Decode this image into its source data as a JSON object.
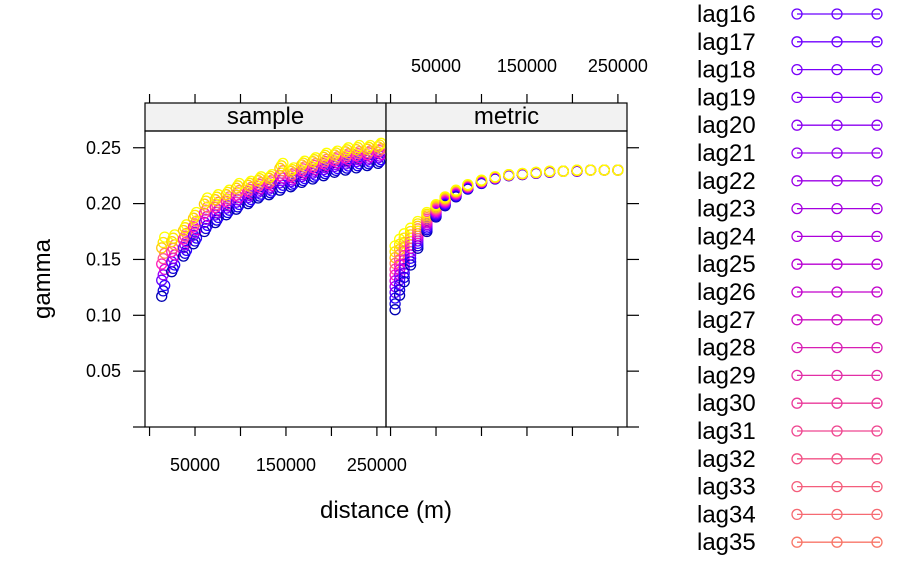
{
  "chart_data": {
    "type": "scatter",
    "xlabel": "distance (m)",
    "ylabel": "gamma",
    "x_ticks": [
      50000,
      150000,
      250000
    ],
    "x_tick_labels": [
      "50000",
      "150000",
      "250000"
    ],
    "y_ticks": [
      0.05,
      0.1,
      0.15,
      0.2,
      0.25
    ],
    "y_tick_labels": [
      "0.05",
      "0.10",
      "0.15",
      "0.20",
      "0.25"
    ],
    "xlim": [
      -5000,
      260000
    ],
    "ylim": [
      0.0,
      0.265
    ],
    "grid": false,
    "legend_placement": "right",
    "panels": [
      {
        "name": "sample",
        "x": [
          15000,
          26000,
          39000,
          50000,
          62000,
          74000,
          86000,
          97000,
          110000,
          121000,
          133000,
          145000,
          157000,
          169000,
          181000,
          193000,
          205000,
          217000,
          229000,
          241000,
          253000
        ],
        "y_min": [
          0.117,
          0.139,
          0.153,
          0.164,
          0.175,
          0.183,
          0.19,
          0.195,
          0.2,
          0.205,
          0.208,
          0.212,
          0.215,
          0.219,
          0.222,
          0.225,
          0.228,
          0.23,
          0.232,
          0.234,
          0.236
        ],
        "y_max": [
          0.17,
          0.172,
          0.181,
          0.192,
          0.205,
          0.208,
          0.212,
          0.218,
          0.22,
          0.224,
          0.226,
          0.236,
          0.232,
          0.238,
          0.241,
          0.245,
          0.247,
          0.25,
          0.252,
          0.252,
          0.254
        ]
      },
      {
        "name": "metric",
        "x": [
          5000,
          10000,
          15000,
          22000,
          30000,
          40000,
          50000,
          60000,
          72000,
          85000,
          100000,
          115000,
          130000,
          145000,
          160000,
          175000,
          190000,
          205000,
          220000,
          235000,
          250000
        ],
        "y_min": [
          0.105,
          0.118,
          0.13,
          0.145,
          0.16,
          0.175,
          0.188,
          0.198,
          0.206,
          0.213,
          0.218,
          0.222,
          0.225,
          0.226,
          0.227,
          0.228,
          0.229,
          0.229,
          0.23,
          0.23,
          0.23
        ],
        "y_max": [
          0.162,
          0.168,
          0.173,
          0.178,
          0.184,
          0.192,
          0.199,
          0.206,
          0.212,
          0.217,
          0.221,
          0.224,
          0.226,
          0.227,
          0.228,
          0.229,
          0.229,
          0.23,
          0.23,
          0.23,
          0.23
        ]
      }
    ],
    "legend": [
      {
        "label": "lag16",
        "color": "#6a00ff"
      },
      {
        "label": "lag17",
        "color": "#7000ff"
      },
      {
        "label": "lag18",
        "color": "#7a00fa"
      },
      {
        "label": "lag19",
        "color": "#8400f5"
      },
      {
        "label": "lag20",
        "color": "#8c00f0"
      },
      {
        "label": "lag21",
        "color": "#9400ec"
      },
      {
        "label": "lag22",
        "color": "#9c00e6"
      },
      {
        "label": "lag23",
        "color": "#a500e0"
      },
      {
        "label": "lag24",
        "color": "#ae00da"
      },
      {
        "label": "lag25",
        "color": "#b800d3"
      },
      {
        "label": "lag26",
        "color": "#c200cc"
      },
      {
        "label": "lag27",
        "color": "#cc10c2"
      },
      {
        "label": "lag28",
        "color": "#d81fb4"
      },
      {
        "label": "lag29",
        "color": "#e22ea6"
      },
      {
        "label": "lag30",
        "color": "#ea3a9a"
      },
      {
        "label": "lag31",
        "color": "#ef4690"
      },
      {
        "label": "lag32",
        "color": "#f25286"
      },
      {
        "label": "lag33",
        "color": "#f45e7c"
      },
      {
        "label": "lag34",
        "color": "#f66a72"
      },
      {
        "label": "lag35",
        "color": "#f87668"
      }
    ],
    "color_ramp": [
      "#0000b0",
      "#2200ff",
      "#8800ff",
      "#ff00cc",
      "#ff5f8a",
      "#ffd200",
      "#ffff00"
    ]
  }
}
